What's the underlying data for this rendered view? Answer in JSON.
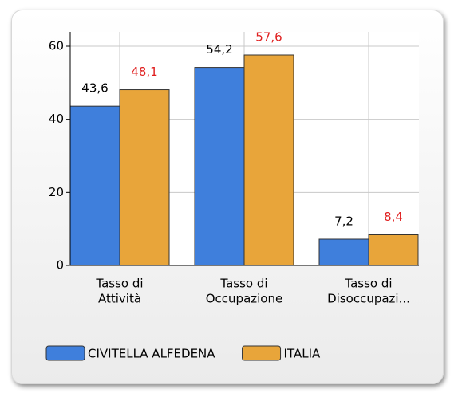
{
  "chart_data": {
    "type": "bar",
    "categories": [
      [
        "Tasso di",
        "Attività"
      ],
      [
        "Tasso di",
        "Occupazione"
      ],
      [
        "Tasso di",
        "Disoccupazi..."
      ]
    ],
    "series": [
      {
        "name": "CIVITELLA ALFEDENA",
        "color": "#3f7fdc",
        "label_color": "#000000",
        "values": [
          43.6,
          54.2,
          7.2
        ],
        "value_labels": [
          "43,6",
          "54,2",
          "7,2"
        ]
      },
      {
        "name": "ITALIA",
        "color": "#e8a53a",
        "label_color": "#e02020",
        "values": [
          48.1,
          57.6,
          8.4
        ],
        "value_labels": [
          "48,1",
          "57,6",
          "8,4"
        ]
      }
    ],
    "ylim": [
      0,
      60
    ],
    "yticks": [
      0,
      20,
      40,
      60
    ],
    "grid": true
  }
}
